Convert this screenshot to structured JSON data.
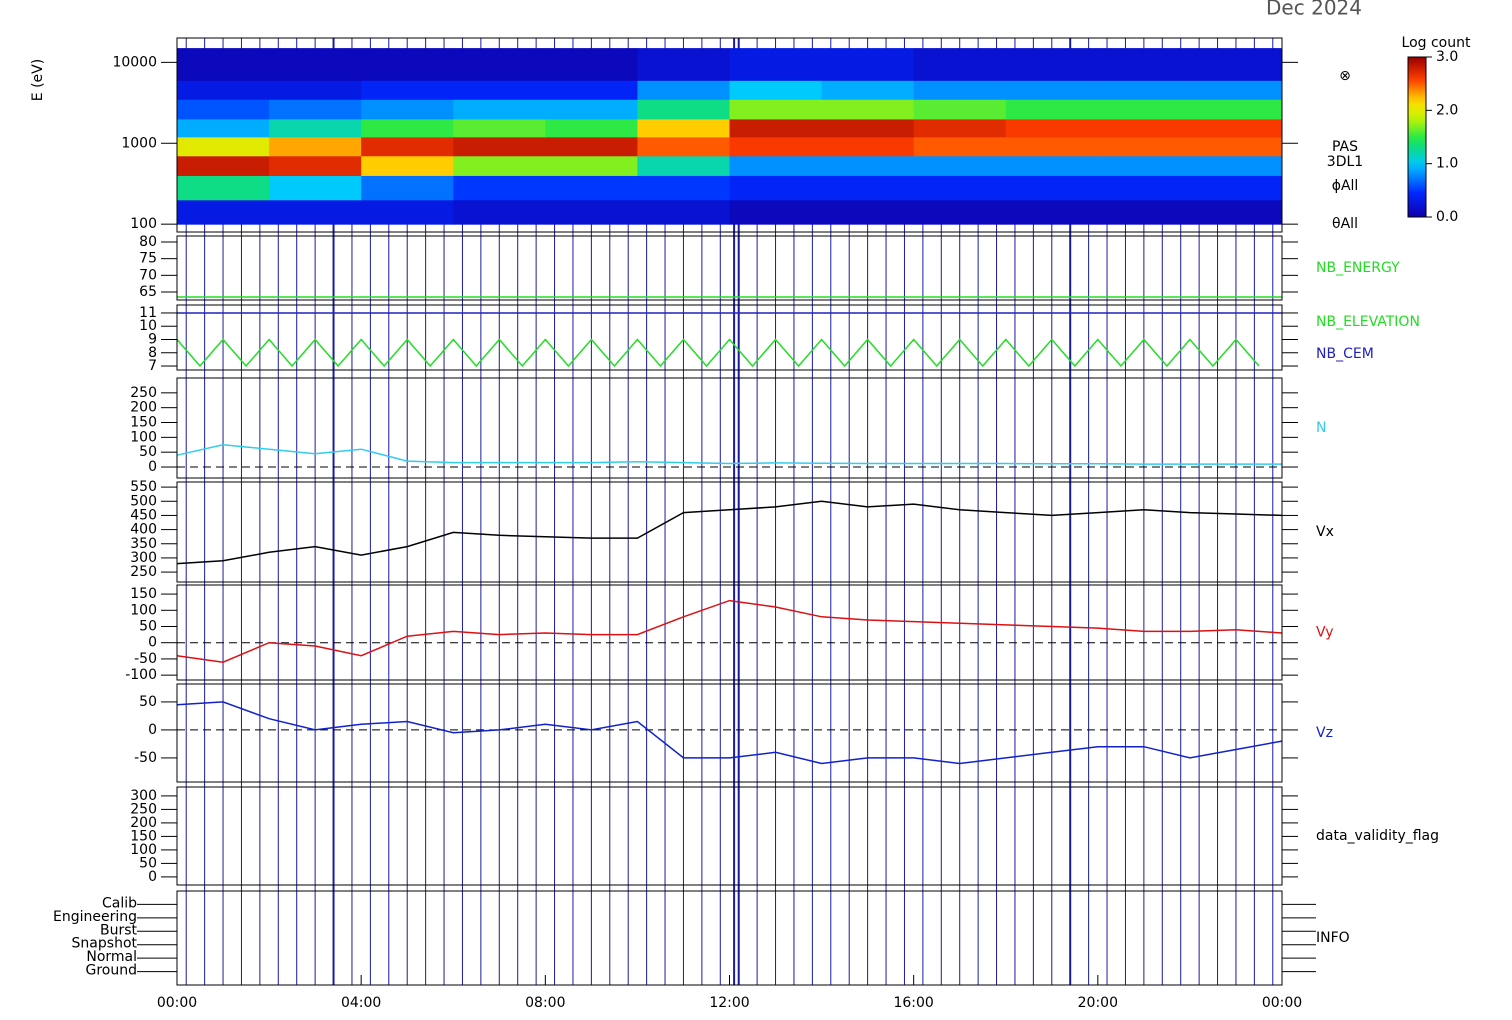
{
  "title": "Dec 2024",
  "chart_data": [
    {
      "type": "heatmap",
      "ylabel": "E (eV)",
      "log_y": true,
      "ylim": [
        80,
        20000
      ],
      "yticks": [
        100,
        1000,
        10000
      ],
      "x_bins": [
        0,
        2,
        4,
        6,
        8,
        10,
        12,
        14,
        16,
        18,
        20,
        22,
        24
      ],
      "y_bins": [
        100,
        200,
        400,
        700,
        1200,
        2000,
        3500,
        6000,
        15000
      ],
      "z": [
        [
          0.3,
          0.3,
          0.3,
          0.2,
          0.2,
          0.2,
          0.1,
          0.1,
          0.1,
          0.1,
          0.1,
          0.1
        ],
        [
          1.3,
          1.0,
          0.7,
          0.5,
          0.5,
          0.5,
          0.4,
          0.4,
          0.4,
          0.4,
          0.4,
          0.4
        ],
        [
          2.8,
          2.7,
          2.2,
          1.7,
          1.7,
          1.2,
          0.8,
          0.8,
          0.8,
          0.8,
          0.8,
          0.8
        ],
        [
          2.0,
          2.3,
          2.7,
          2.8,
          2.8,
          2.5,
          2.6,
          2.6,
          2.5,
          2.5,
          2.5,
          2.5
        ],
        [
          0.9,
          1.2,
          1.5,
          1.6,
          1.5,
          2.2,
          2.8,
          2.8,
          2.7,
          2.6,
          2.6,
          2.6
        ],
        [
          0.6,
          0.7,
          0.8,
          0.9,
          0.9,
          1.3,
          1.7,
          1.7,
          1.6,
          1.5,
          1.5,
          1.5
        ],
        [
          0.3,
          0.3,
          0.4,
          0.4,
          0.4,
          0.8,
          1.0,
          0.9,
          0.8,
          0.8,
          0.8,
          0.8
        ],
        [
          0.1,
          0.1,
          0.1,
          0.1,
          0.1,
          0.2,
          0.3,
          0.3,
          0.2,
          0.2,
          0.2,
          0.2
        ]
      ],
      "annotations": [
        "⊗",
        "PAS",
        "3DL1",
        "ϕAll",
        "θAll"
      ],
      "colorbar": {
        "label": "Log count",
        "zlim": [
          0,
          3
        ],
        "ticks": [
          {
            "value": 0,
            "label": "0.0"
          },
          {
            "value": 1,
            "label": "1.0"
          },
          {
            "value": 2,
            "label": "2.0"
          },
          {
            "value": 3,
            "label": "3.0"
          }
        ]
      }
    },
    {
      "type": "line",
      "ylim": [
        62.6,
        81.8
      ],
      "yticks": [
        65,
        70,
        75,
        80
      ],
      "series": [
        {
          "name": "NB_ENERGY",
          "color": "#22dd22",
          "x": [
            0,
            24
          ],
          "values": [
            63.5,
            63.5
          ]
        }
      ]
    },
    {
      "type": "line",
      "ylim": [
        6.7,
        11.6
      ],
      "yticks": [
        7,
        8,
        9,
        10,
        11
      ],
      "series": [
        {
          "name": "NB_ELEVATION",
          "color": "#22dd22",
          "x": [
            0,
            0.5,
            1,
            1.5,
            2,
            2.5,
            3,
            3.5,
            4,
            4.5,
            5,
            5.5,
            6,
            6.5,
            7,
            7.5,
            8,
            8.5,
            9,
            9.5,
            10,
            10.5,
            11,
            11.5,
            12,
            12.5,
            13,
            13.5,
            14,
            14.5,
            15,
            15.5,
            16,
            16.5,
            17,
            17.5,
            18,
            18.5,
            19,
            19.5,
            20,
            20.5,
            21,
            21.5,
            22,
            22.5,
            23,
            23.5
          ],
          "values": [
            9,
            7,
            9,
            7,
            9,
            7,
            9,
            7,
            9,
            7,
            9,
            7,
            9,
            7,
            9,
            7,
            9,
            7,
            9,
            7,
            9,
            7,
            9,
            7,
            9,
            7,
            9,
            7,
            9,
            7,
            9,
            7,
            9,
            7,
            9,
            7,
            9,
            7,
            9,
            7,
            9,
            7,
            9,
            7,
            9,
            7,
            9,
            7
          ]
        },
        {
          "name": "NB_CEM",
          "color": "#2222bb",
          "x": [
            0,
            24
          ],
          "values": [
            11,
            11
          ]
        }
      ]
    },
    {
      "type": "line",
      "ylim": [
        -37,
        300
      ],
      "yticks": [
        0,
        50,
        100,
        150,
        200,
        250
      ],
      "zero_line": true,
      "x": [
        0,
        1,
        2,
        3,
        4,
        5,
        6,
        7,
        8,
        9,
        10,
        11,
        12,
        13,
        14,
        15,
        16,
        17,
        18,
        19,
        20,
        21,
        22,
        23,
        24
      ],
      "series": [
        {
          "name": "N",
          "color": "#33ccee",
          "values": [
            40,
            75,
            60,
            45,
            60,
            20,
            15,
            15,
            15,
            15,
            18,
            15,
            12,
            14,
            13,
            12,
            12,
            12,
            12,
            11,
            11,
            10,
            10,
            10,
            10
          ]
        }
      ]
    },
    {
      "type": "line",
      "ylim": [
        215,
        568
      ],
      "yticks": [
        250,
        300,
        350,
        400,
        450,
        500,
        550
      ],
      "x": [
        0,
        1,
        2,
        3,
        4,
        5,
        6,
        7,
        8,
        9,
        10,
        11,
        12,
        13,
        14,
        15,
        16,
        17,
        18,
        19,
        20,
        21,
        22,
        23,
        24
      ],
      "series": [
        {
          "name": "Vx",
          "color": "#000000",
          "values": [
            280,
            290,
            320,
            340,
            310,
            340,
            390,
            380,
            375,
            370,
            370,
            460,
            470,
            480,
            500,
            480,
            490,
            470,
            460,
            450,
            460,
            470,
            460,
            455,
            450
          ]
        }
      ]
    },
    {
      "type": "line",
      "ylim": [
        -115,
        178
      ],
      "yticks": [
        -100,
        -50,
        0,
        50,
        100,
        150
      ],
      "zero_line": true,
      "x": [
        0,
        1,
        2,
        3,
        4,
        5,
        6,
        7,
        8,
        9,
        10,
        11,
        12,
        13,
        14,
        15,
        16,
        17,
        18,
        19,
        20,
        21,
        22,
        23,
        24
      ],
      "series": [
        {
          "name": "Vy",
          "color": "#dd1111",
          "values": [
            -40,
            -60,
            0,
            -10,
            -40,
            20,
            35,
            25,
            30,
            25,
            25,
            80,
            130,
            110,
            80,
            70,
            65,
            60,
            55,
            50,
            45,
            35,
            35,
            40,
            30
          ]
        }
      ]
    },
    {
      "type": "line",
      "ylim": [
        -93,
        82
      ],
      "yticks": [
        -50,
        0,
        50
      ],
      "zero_line": true,
      "x": [
        0,
        1,
        2,
        3,
        4,
        5,
        6,
        7,
        8,
        9,
        10,
        11,
        12,
        13,
        14,
        15,
        16,
        17,
        18,
        19,
        20,
        21,
        22,
        23,
        24
      ],
      "series": [
        {
          "name": "Vz",
          "color": "#1122cc",
          "values": [
            45,
            50,
            20,
            0,
            10,
            15,
            -5,
            0,
            10,
            0,
            15,
            -50,
            -50,
            -40,
            -60,
            -50,
            -50,
            -60,
            -50,
            -40,
            -30,
            -30,
            -50,
            -35,
            -20
          ]
        }
      ]
    },
    {
      "type": "empty",
      "label": "data_validity_flag",
      "ylim": [
        -30,
        333
      ],
      "yticks": [
        0,
        50,
        100,
        150,
        200,
        250,
        300
      ]
    },
    {
      "type": "flags",
      "label": "INFO",
      "categories": [
        "Calib",
        "Engineering",
        "Burst",
        "Snapshot",
        "Normal",
        "Ground"
      ],
      "xlim": [
        0,
        24
      ],
      "xticks": [
        {
          "value": 0,
          "label": "00:00"
        },
        {
          "value": 4,
          "label": "04:00"
        },
        {
          "value": 8,
          "label": "08:00"
        },
        {
          "value": 12,
          "label": "12:00"
        },
        {
          "value": 16,
          "label": "16:00"
        },
        {
          "value": 20,
          "label": "20:00"
        },
        {
          "value": 24,
          "label": "00:00"
        }
      ]
    }
  ]
}
